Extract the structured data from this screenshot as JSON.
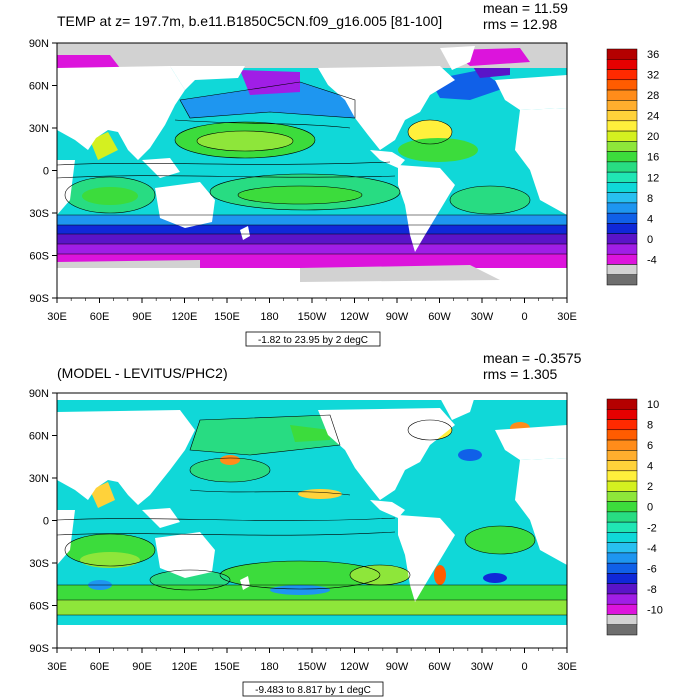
{
  "panels": [
    {
      "title": "TEMP at z= 197.7m, b.e11.B1850C5CN.f09_g16.005 [81-100]",
      "mean": "mean = 11.59",
      "rms": "rms = 12.98",
      "range_label": "-1.82 to 23.95 by 2 degC",
      "lat_labels": [
        "90N",
        "60N",
        "30N",
        "0",
        "30S",
        "60S",
        "90S"
      ],
      "lon_labels": [
        "30E",
        "60E",
        "90E",
        "120E",
        "150E",
        "180",
        "150W",
        "120W",
        "90W",
        "60W",
        "30W",
        "0",
        "30E"
      ],
      "colorbar": {
        "labels": [
          "36",
          "32",
          "28",
          "24",
          "20",
          "16",
          "12",
          "8",
          "4",
          "0",
          "-4"
        ],
        "colors": [
          "#b40000",
          "#e60000",
          "#ff2a00",
          "#ff5c00",
          "#ff8c1a",
          "#ffae2e",
          "#ffd23a",
          "#fff03c",
          "#d4f020",
          "#8ee63a",
          "#3cdc3c",
          "#28dc82",
          "#20e6b4",
          "#10d8d8",
          "#28c0f0",
          "#1e96f0",
          "#1060e8",
          "#1028d8",
          "#5a14c8",
          "#a01ee6",
          "#dc14dc",
          "#d2d2d2",
          "#6e6e6e"
        ]
      }
    },
    {
      "title": "(MODEL - LEVITUS/PHC2)",
      "mean": "mean = -0.3575",
      "rms": "rms = 1.305",
      "range_label": "-9.483 to 8.817 by 1 degC",
      "lat_labels": [
        "90N",
        "60N",
        "30N",
        "0",
        "30S",
        "60S",
        "90S"
      ],
      "lon_labels": [
        "30E",
        "60E",
        "90E",
        "120E",
        "150E",
        "180",
        "150W",
        "120W",
        "90W",
        "60W",
        "30W",
        "0",
        "30E"
      ],
      "colorbar": {
        "labels": [
          "10",
          "8",
          "6",
          "4",
          "2",
          "0",
          "-2",
          "-4",
          "-6",
          "-8",
          "-10"
        ],
        "colors": [
          "#b40000",
          "#e60000",
          "#ff2a00",
          "#ff5c00",
          "#ff8c1a",
          "#ffae2e",
          "#ffd23a",
          "#fff03c",
          "#d4f020",
          "#8ee63a",
          "#3cdc3c",
          "#28dc82",
          "#20e6b4",
          "#10d8d8",
          "#28c0f0",
          "#1e96f0",
          "#1060e8",
          "#1028d8",
          "#5a14c8",
          "#a01ee6",
          "#dc14dc",
          "#d2d2d2",
          "#6e6e6e"
        ]
      }
    }
  ]
}
